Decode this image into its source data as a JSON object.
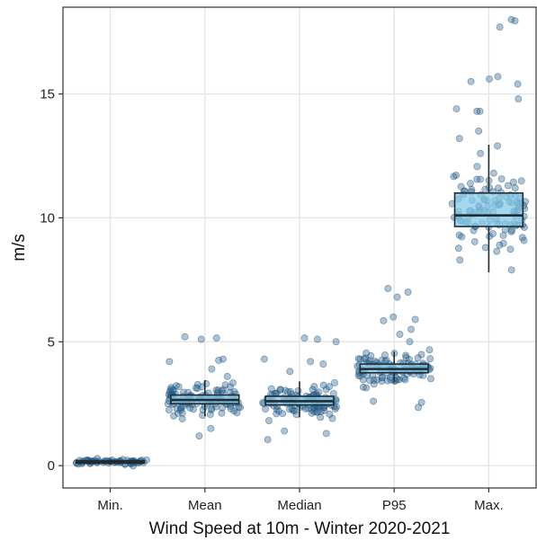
{
  "chart_data": {
    "type": "box",
    "title": "",
    "xlabel": "Wind Speed at 10m - Winter 2020-2021",
    "ylabel": "m/s",
    "ylim": [
      -0.9,
      18.5
    ],
    "yticks": [
      0,
      5,
      10,
      15
    ],
    "grid": true,
    "legend": "none",
    "categories": [
      "Min.",
      "Mean",
      "Median",
      "P95",
      "Max."
    ],
    "boxes": [
      {
        "category": "Min.",
        "min": 0.05,
        "q1": 0.1,
        "median": 0.15,
        "q3": 0.2,
        "max": 0.25
      },
      {
        "category": "Mean",
        "min": 2.0,
        "q1": 2.5,
        "median": 2.65,
        "q3": 2.85,
        "max": 3.45
      },
      {
        "category": "Median",
        "min": 1.95,
        "q1": 2.45,
        "median": 2.6,
        "q3": 2.8,
        "max": 3.4
      },
      {
        "category": "P95",
        "min": 3.35,
        "q1": 3.75,
        "median": 3.9,
        "q3": 4.1,
        "max": 4.6
      },
      {
        "category": "Max.",
        "min": 7.8,
        "q1": 9.65,
        "median": 10.1,
        "q3": 11.0,
        "max": 12.95
      }
    ],
    "points": [
      {
        "category": "Min.",
        "center": 0.15,
        "spread": 0.06,
        "n": 60,
        "extra": []
      },
      {
        "category": "Mean",
        "center": 2.65,
        "spread": 0.3,
        "n": 110,
        "extra": [
          5.2,
          5.15,
          5.1,
          4.3,
          4.25,
          4.2,
          3.9,
          3.6,
          1.5,
          1.2
        ]
      },
      {
        "category": "Median",
        "center": 2.6,
        "spread": 0.3,
        "n": 110,
        "extra": [
          5.0,
          5.15,
          5.1,
          4.3,
          4.2,
          4.1,
          3.8,
          1.3,
          1.05,
          1.4
        ]
      },
      {
        "category": "P95",
        "center": 3.9,
        "spread": 0.3,
        "n": 110,
        "extra": [
          7.15,
          7.0,
          6.8,
          6.0,
          5.9,
          5.85,
          5.5,
          5.3,
          5.0,
          2.6,
          2.35,
          2.55
        ]
      },
      {
        "category": "Max.",
        "center": 10.3,
        "spread": 0.75,
        "n": 110,
        "extra": [
          18.0,
          17.95,
          17.7,
          15.7,
          15.6,
          15.5,
          15.4,
          14.8,
          14.4,
          14.3,
          14.3,
          13.5,
          13.2,
          12.9,
          12.6,
          8.3,
          7.9,
          8.9,
          8.8
        ]
      }
    ],
    "colors": {
      "box_fill": "#87c9e8",
      "box_stroke": "#1f2d33",
      "point_fill": "#2e6b9a",
      "point_stroke": "#1c4466",
      "grid": "#e5e5e5",
      "axis": "#333333"
    }
  }
}
